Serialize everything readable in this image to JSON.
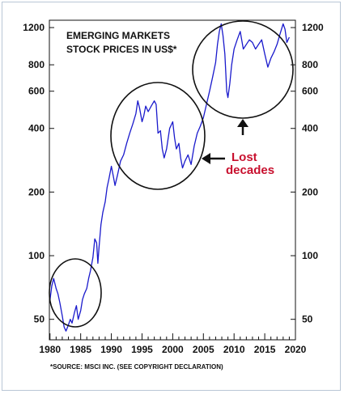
{
  "chart_data": {
    "type": "line",
    "title_lines": [
      "EMERGING MARKETS",
      "STOCK PRICES IN US$*"
    ],
    "footnote": "*SOURCE: MSCI INC. (SEE COPYRIGHT DECLARATION)",
    "annotation_lines": [
      "Lost",
      "decades"
    ],
    "y_scale": "log",
    "ylim": [
      40,
      1300
    ],
    "xlim": [
      1979.9,
      2020
    ],
    "y_ticks": [
      50,
      100,
      200,
      400,
      600,
      800,
      1200
    ],
    "y_tick_labels": [
      "50",
      "100",
      "200",
      "400",
      "600",
      "800",
      "1200"
    ],
    "x_ticks": [
      1980,
      1985,
      1990,
      1995,
      2000,
      2005,
      2010,
      2015,
      2020
    ],
    "x_tick_labels": [
      "1980",
      "1985",
      "1990",
      "1995",
      "2000",
      "2005",
      "2010",
      "2015",
      "2020"
    ],
    "line_color": "#1a1acc",
    "series": [
      {
        "x": [
          1980.0,
          1980.3,
          1980.6,
          1981.0,
          1981.3,
          1981.6,
          1982.0,
          1982.3,
          1982.6,
          1983.0,
          1983.3,
          1983.6,
          1984.0,
          1984.3,
          1984.6,
          1985.0,
          1985.3,
          1985.6,
          1986.0,
          1986.3,
          1986.6,
          1987.0,
          1987.3,
          1987.6,
          1987.8,
          1988.0,
          1988.3,
          1988.6,
          1989.0,
          1989.3,
          1989.6,
          1990.0,
          1990.3,
          1990.6,
          1991.0,
          1991.5,
          1992.0,
          1992.5,
          1993.0,
          1993.5,
          1994.0,
          1994.3,
          1994.6,
          1995.0,
          1995.3,
          1995.6,
          1996.0,
          1996.5,
          1997.0,
          1997.3,
          1997.6,
          1998.0,
          1998.3,
          1998.6,
          1999.0,
          1999.5,
          2000.0,
          2000.3,
          2000.6,
          2001.0,
          2001.3,
          2001.6,
          2002.0,
          2002.5,
          2003.0,
          2003.5,
          2004.0,
          2004.5,
          2005.0,
          2005.5,
          2006.0,
          2006.5,
          2007.0,
          2007.3,
          2007.6,
          2007.9,
          2008.2,
          2008.5,
          2008.8,
          2009.0,
          2009.3,
          2009.6,
          2010.0,
          2010.5,
          2011.0,
          2011.5,
          2012.0,
          2012.5,
          2013.0,
          2013.5,
          2014.0,
          2014.5,
          2015.0,
          2015.5,
          2016.0,
          2016.5,
          2017.0,
          2017.5,
          2018.0,
          2018.3,
          2018.6,
          2019.0
        ],
        "y": [
          62,
          72,
          78,
          70,
          66,
          60,
          52,
          46,
          44,
          47,
          50,
          48,
          54,
          58,
          50,
          55,
          62,
          66,
          70,
          78,
          85,
          98,
          120,
          115,
          92,
          110,
          140,
          160,
          180,
          210,
          230,
          265,
          240,
          215,
          240,
          280,
          300,
          340,
          380,
          420,
          470,
          540,
          500,
          430,
          460,
          510,
          480,
          510,
          540,
          520,
          380,
          390,
          320,
          290,
          320,
          400,
          430,
          360,
          320,
          340,
          290,
          260,
          280,
          300,
          270,
          330,
          380,
          410,
          450,
          520,
          600,
          700,
          820,
          1000,
          1150,
          1250,
          1100,
          900,
          600,
          560,
          650,
          800,
          950,
          1050,
          1150,
          950,
          1000,
          1050,
          1020,
          950,
          1000,
          1050,
          900,
          780,
          860,
          920,
          1000,
          1120,
          1250,
          1180,
          1020,
          1080
        ]
      }
    ]
  }
}
